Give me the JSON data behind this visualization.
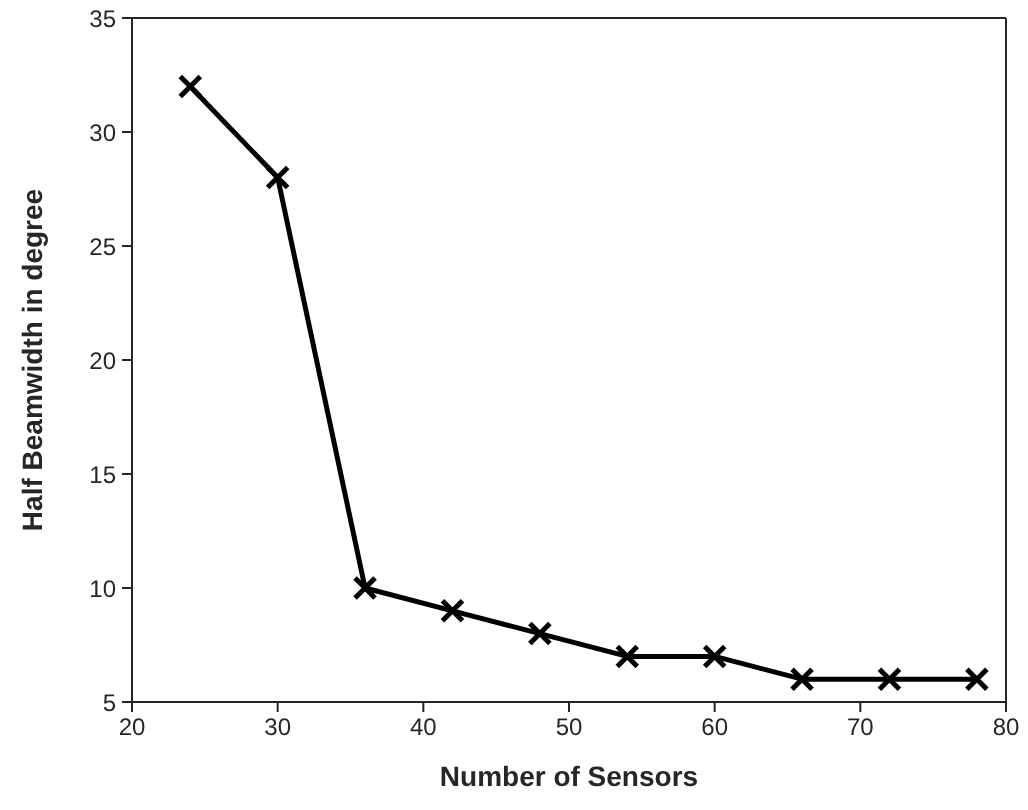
{
  "chart_data": {
    "type": "line",
    "xlabel": "Number of Sensors",
    "ylabel": "Half Beamwidth in degree",
    "x": [
      24,
      30,
      36,
      42,
      48,
      54,
      60,
      66,
      72,
      78
    ],
    "series": [
      {
        "color": "#000000",
        "values": [
          32,
          28,
          10,
          9,
          8,
          7,
          7,
          6,
          6,
          6
        ]
      }
    ],
    "xlim": [
      20,
      80
    ],
    "xticks": [
      20,
      30,
      40,
      50,
      60,
      70,
      80
    ],
    "ylim": [
      5,
      35
    ],
    "yticks": [
      5,
      10,
      15,
      20,
      25,
      30,
      35
    ],
    "grid": false,
    "legend": false,
    "marker": "cross",
    "line_style": "solid"
  }
}
